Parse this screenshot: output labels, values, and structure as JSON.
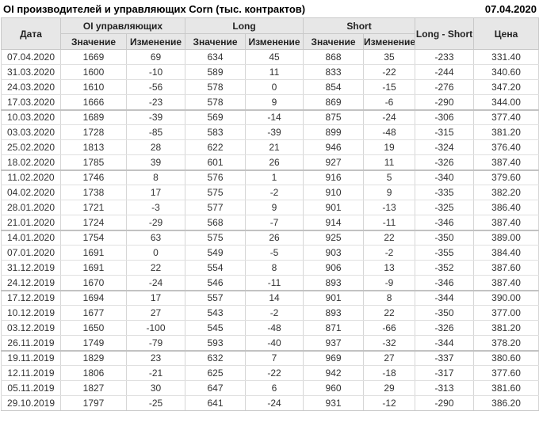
{
  "title": "OI производителей и управляющих Corn (тыс. контрактов)",
  "report_date": "07.04.2020",
  "colors": {
    "positive_change": "#008000",
    "negative_change": "#cc0000",
    "header_background": "#e7e7e7",
    "grid_line": "#d6d6d6"
  },
  "table": {
    "header": {
      "date_col": "Дата",
      "oi_group": "OI управляющих",
      "long_group": "Long",
      "short_group": "Short",
      "long_short_col": "Long - Short",
      "price_col": "Цена",
      "value_label": "Значение",
      "change_label": "Изменение"
    },
    "change_column_indices": [
      2,
      4,
      6
    ],
    "group_size": 4,
    "rows": [
      [
        "07.04.2020",
        "1669",
        "69",
        "634",
        "45",
        "868",
        "35",
        "-233",
        "331.40"
      ],
      [
        "31.03.2020",
        "1600",
        "-10",
        "589",
        "11",
        "833",
        "-22",
        "-244",
        "340.60"
      ],
      [
        "24.03.2020",
        "1610",
        "-56",
        "578",
        "0",
        "854",
        "-15",
        "-276",
        "347.20"
      ],
      [
        "17.03.2020",
        "1666",
        "-23",
        "578",
        "9",
        "869",
        "-6",
        "-290",
        "344.00"
      ],
      [
        "10.03.2020",
        "1689",
        "-39",
        "569",
        "-14",
        "875",
        "-24",
        "-306",
        "377.40"
      ],
      [
        "03.03.2020",
        "1728",
        "-85",
        "583",
        "-39",
        "899",
        "-48",
        "-315",
        "381.20"
      ],
      [
        "25.02.2020",
        "1813",
        "28",
        "622",
        "21",
        "946",
        "19",
        "-324",
        "376.40"
      ],
      [
        "18.02.2020",
        "1785",
        "39",
        "601",
        "26",
        "927",
        "11",
        "-326",
        "387.40"
      ],
      [
        "11.02.2020",
        "1746",
        "8",
        "576",
        "1",
        "916",
        "5",
        "-340",
        "379.60"
      ],
      [
        "04.02.2020",
        "1738",
        "17",
        "575",
        "-2",
        "910",
        "9",
        "-335",
        "382.20"
      ],
      [
        "28.01.2020",
        "1721",
        "-3",
        "577",
        "9",
        "901",
        "-13",
        "-325",
        "386.40"
      ],
      [
        "21.01.2020",
        "1724",
        "-29",
        "568",
        "-7",
        "914",
        "-11",
        "-346",
        "387.40"
      ],
      [
        "14.01.2020",
        "1754",
        "63",
        "575",
        "26",
        "925",
        "22",
        "-350",
        "389.00"
      ],
      [
        "07.01.2020",
        "1691",
        "0",
        "549",
        "-5",
        "903",
        "-2",
        "-355",
        "384.40"
      ],
      [
        "31.12.2019",
        "1691",
        "22",
        "554",
        "8",
        "906",
        "13",
        "-352",
        "387.60"
      ],
      [
        "24.12.2019",
        "1670",
        "-24",
        "546",
        "-11",
        "893",
        "-9",
        "-346",
        "387.40"
      ],
      [
        "17.12.2019",
        "1694",
        "17",
        "557",
        "14",
        "901",
        "8",
        "-344",
        "390.00"
      ],
      [
        "10.12.2019",
        "1677",
        "27",
        "543",
        "-2",
        "893",
        "22",
        "-350",
        "377.00"
      ],
      [
        "03.12.2019",
        "1650",
        "-100",
        "545",
        "-48",
        "871",
        "-66",
        "-326",
        "381.20"
      ],
      [
        "26.11.2019",
        "1749",
        "-79",
        "593",
        "-40",
        "937",
        "-32",
        "-344",
        "378.20"
      ],
      [
        "19.11.2019",
        "1829",
        "23",
        "632",
        "7",
        "969",
        "27",
        "-337",
        "380.60"
      ],
      [
        "12.11.2019",
        "1806",
        "-21",
        "625",
        "-22",
        "942",
        "-18",
        "-317",
        "377.60"
      ],
      [
        "05.11.2019",
        "1827",
        "30",
        "647",
        "6",
        "960",
        "29",
        "-313",
        "381.60"
      ],
      [
        "29.10.2019",
        "1797",
        "-25",
        "641",
        "-24",
        "931",
        "-12",
        "-290",
        "386.20"
      ]
    ]
  }
}
